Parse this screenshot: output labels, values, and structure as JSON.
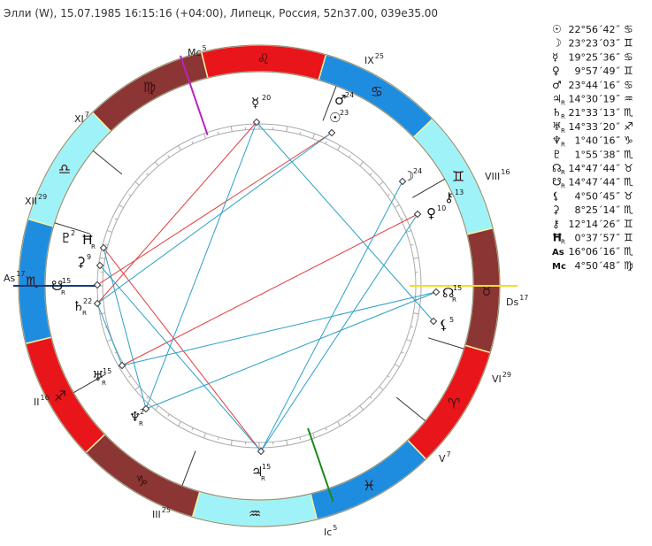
{
  "header": {
    "title": "Элли (W), 15.07.1985 16:15:16 (+04:00), Липецк, Россия, 52n37.00, 039e35.00"
  },
  "positions": [
    {
      "symbol": "☉",
      "value": "22°56´42˝",
      "sign": "♋"
    },
    {
      "symbol": "☽",
      "value": "23°23´03˝",
      "sign": "♊"
    },
    {
      "symbol": "☿",
      "value": "19°25´36˝",
      "sign": "♋"
    },
    {
      "symbol": "♀",
      "value": "9°57´49˝",
      "sign": "♊"
    },
    {
      "symbol": "♂",
      "value": "23°44´16˝",
      "sign": "♋"
    },
    {
      "symbol": "♃",
      "retro": "R",
      "value": "14°30´19˝",
      "sign": "♒"
    },
    {
      "symbol": "♄",
      "retro": "R",
      "value": "21°33´13˝",
      "sign": "♏"
    },
    {
      "symbol": "♅",
      "retro": "R",
      "value": "14°33´20˝",
      "sign": "♐"
    },
    {
      "symbol": "♆",
      "retro": "R",
      "value": "1°40´16˝",
      "sign": "♑"
    },
    {
      "symbol": "♇",
      "value": "1°55´38˝",
      "sign": "♏"
    },
    {
      "symbol": "☊",
      "retro": "R",
      "value": "14°47´44˝",
      "sign": "♉"
    },
    {
      "symbol": "☋",
      "retro": "R",
      "value": "14°47´44˝",
      "sign": "♏"
    },
    {
      "symbol": "⚸",
      "value": "4°50´45˝",
      "sign": "♉"
    },
    {
      "symbol": "⚳",
      "value": "8°25´14˝",
      "sign": "♏"
    },
    {
      "symbol": "⚷",
      "value": "12°14´26˝",
      "sign": "♊"
    },
    {
      "symbol": "Ħ",
      "retro": "R",
      "value": "0°37´57˝",
      "sign": "♊"
    },
    {
      "symbol": "As",
      "value": "16°06´16˝",
      "sign": "♏"
    },
    {
      "symbol": "Mc",
      "value": "4°50´48˝",
      "sign": "♍"
    }
  ],
  "wheel": {
    "signs": [
      "♈",
      "♉",
      "♊",
      "♋",
      "♌",
      "♍",
      "♎",
      "♏",
      "♐",
      "♑",
      "♒",
      "♓"
    ],
    "houses": [
      {
        "label": "XI",
        "degree": 7
      },
      {
        "label": "XII",
        "degree": 29
      },
      {
        "label": "As",
        "degree": 17
      },
      {
        "label": "II",
        "degree": 16
      },
      {
        "label": "III",
        "degree": 25
      },
      {
        "label": "Ic",
        "degree": 5
      },
      {
        "label": "V",
        "degree": 7
      },
      {
        "label": "VI",
        "degree": 29
      },
      {
        "label": "Ds",
        "degree": 17
      },
      {
        "label": "VIII",
        "degree": 16
      },
      {
        "label": "IX",
        "degree": 25
      },
      {
        "label": "Mc",
        "degree": 5
      }
    ],
    "planets": [
      {
        "glyph": "☿",
        "degree": 20
      },
      {
        "glyph": "♂",
        "degree": 24
      },
      {
        "glyph": "☉",
        "degree": 23
      },
      {
        "glyph": "☽",
        "degree": 24
      },
      {
        "glyph": "⚷",
        "degree": 13
      },
      {
        "glyph": "♀",
        "degree": 10
      },
      {
        "glyph": "☊",
        "retro": "R",
        "degree": 15
      },
      {
        "glyph": "⚸",
        "degree": 5
      },
      {
        "glyph": "♃",
        "retro": "R",
        "degree": 15
      },
      {
        "glyph": "♆",
        "retro": "R",
        "degree": 2
      },
      {
        "glyph": "♅",
        "retro": "R",
        "degree": 15
      },
      {
        "glyph": "♄",
        "retro": "R",
        "degree": 22
      },
      {
        "glyph": "☋",
        "retro": "R",
        "degree": 15
      },
      {
        "glyph": "⚳",
        "degree": 9
      },
      {
        "glyph": "♇",
        "degree": 2
      },
      {
        "glyph": "Ħ",
        "retro": "R"
      }
    ]
  }
}
